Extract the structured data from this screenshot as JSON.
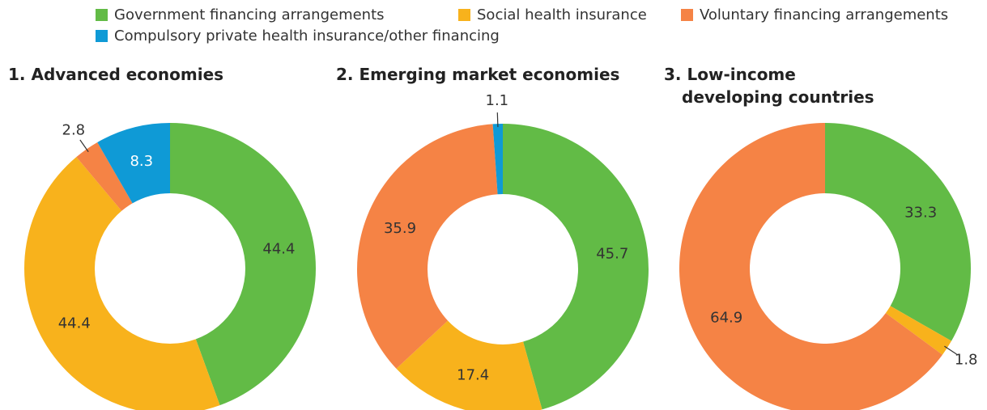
{
  "chart_data": [
    {
      "type": "pie",
      "title": "1. Advanced economies",
      "categories": [
        "Government financing arrangements",
        "Social health insurance",
        "Voluntary financing arrangements",
        "Compulsory private health insurance/other financing"
      ],
      "colors": [
        "#62bb46",
        "#f8b21c",
        "#f58345",
        "#0f9ad6"
      ],
      "values": [
        44.4,
        44.4,
        2.8,
        8.3
      ]
    },
    {
      "type": "pie",
      "title": "2. Emerging market economies",
      "categories": [
        "Government financing arrangements",
        "Social health insurance",
        "Voluntary financing arrangements",
        "Compulsory private health insurance/other financing"
      ],
      "colors": [
        "#62bb46",
        "#f8b21c",
        "#f58345",
        "#0f9ad6"
      ],
      "values": [
        45.7,
        17.4,
        35.9,
        1.1
      ]
    },
    {
      "type": "pie",
      "title": "3. Low-income developing countries",
      "categories": [
        "Government financing arrangements",
        "Social health insurance",
        "Voluntary financing arrangements",
        "Compulsory private health insurance/other financing"
      ],
      "colors": [
        "#62bb46",
        "#f8b21c",
        "#f58345",
        "#0f9ad6"
      ],
      "values": [
        33.3,
        1.8,
        64.9,
        null
      ]
    }
  ]
}
